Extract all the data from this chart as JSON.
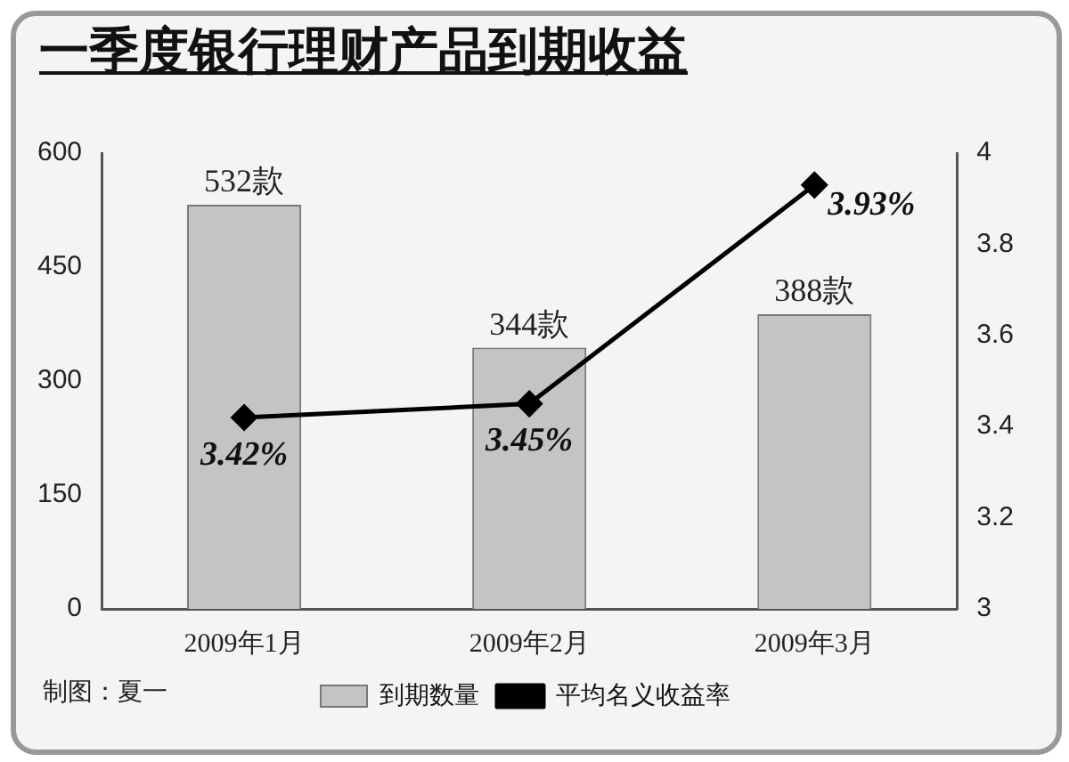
{
  "chart_data": {
    "type": "bar",
    "title": "一季度银行理财产品到期收益",
    "categories": [
      "2009年1月",
      "2009年2月",
      "2009年3月"
    ],
    "series": [
      {
        "name": "到期数量",
        "color": "#c4c4c4",
        "values": [
          532,
          344,
          388
        ],
        "value_labels": [
          "532款",
          "344款",
          "388款"
        ]
      },
      {
        "name": "平均名义收益率",
        "type": "line",
        "axis": "y2",
        "color": "#000000",
        "values": [
          3.42,
          3.45,
          3.93
        ],
        "value_labels": [
          "3.42%",
          "3.45%",
          "3.93%"
        ]
      }
    ],
    "ylim": [
      0,
      600
    ],
    "yticks": [
      0,
      150,
      300,
      450,
      600
    ],
    "y2lim": [
      3,
      4
    ],
    "y2ticks": [
      3,
      3.2,
      3.4,
      3.6,
      3.8,
      4
    ],
    "grid": false,
    "legend": "bottom",
    "marker": "diamond",
    "line_style": "solid",
    "annotations": [
      "制图：夏一"
    ]
  }
}
